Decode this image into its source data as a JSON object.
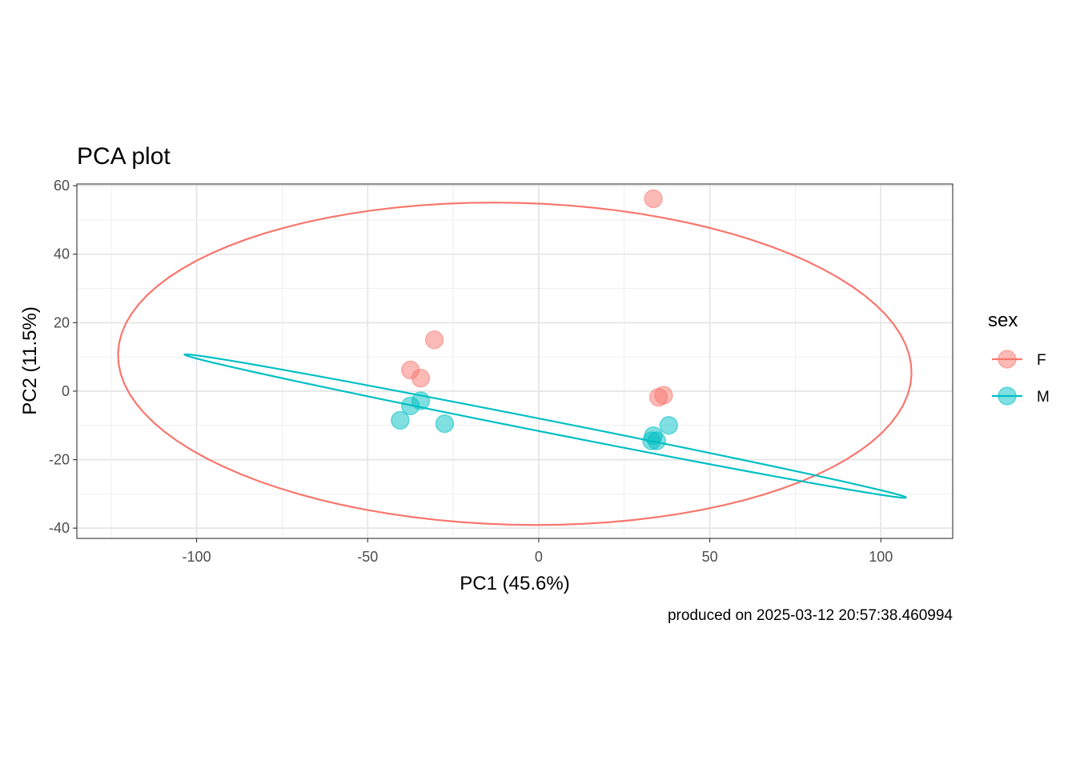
{
  "chart_data": {
    "type": "scatter",
    "title": "PCA plot",
    "xlabel": "PC1 (45.6%)",
    "ylabel": "PC2 (11.5%)",
    "caption": "produced on 2025-03-12 20:57:38.460994",
    "xlim": [
      -135,
      121
    ],
    "ylim": [
      -43,
      60.5
    ],
    "x_ticks": [
      -100,
      -50,
      0,
      50,
      100
    ],
    "y_ticks": [
      -40,
      -20,
      0,
      20,
      40,
      60
    ],
    "x_tick_labels": [
      "-100",
      "-50",
      "0",
      "50",
      "100"
    ],
    "y_tick_labels": [
      "-40",
      "-20",
      "0",
      "20",
      "40",
      "60"
    ],
    "grid": true,
    "legend": {
      "title": "sex",
      "position": "right"
    },
    "series": [
      {
        "name": "F",
        "color": "#F8766D",
        "points": [
          {
            "x": 33.5,
            "y": 56.2
          },
          {
            "x": -30.5,
            "y": 15.0
          },
          {
            "x": -37.5,
            "y": 6.2
          },
          {
            "x": -34.5,
            "y": 3.8
          },
          {
            "x": 36.5,
            "y": -1.2
          },
          {
            "x": 35.0,
            "y": -1.8
          }
        ],
        "ellipse": {
          "center": [
            -7,
            8
          ],
          "rx": 116,
          "ry": 47,
          "angle_deg": -1.5
        }
      },
      {
        "name": "M",
        "color": "#00BFC4",
        "points": [
          {
            "x": -34.5,
            "y": -2.8
          },
          {
            "x": -37.5,
            "y": -4.3
          },
          {
            "x": -40.5,
            "y": -8.5
          },
          {
            "x": -27.5,
            "y": -9.5
          },
          {
            "x": 38.0,
            "y": -10.0
          },
          {
            "x": 33.5,
            "y": -13.0
          },
          {
            "x": 34.5,
            "y": -14.5
          },
          {
            "x": 33.0,
            "y": -14.5
          }
        ],
        "ellipse": {
          "center": [
            2,
            -10.2
          ],
          "rx": 107.5,
          "ry": 1.8,
          "angle_deg": -11.2
        }
      }
    ]
  }
}
